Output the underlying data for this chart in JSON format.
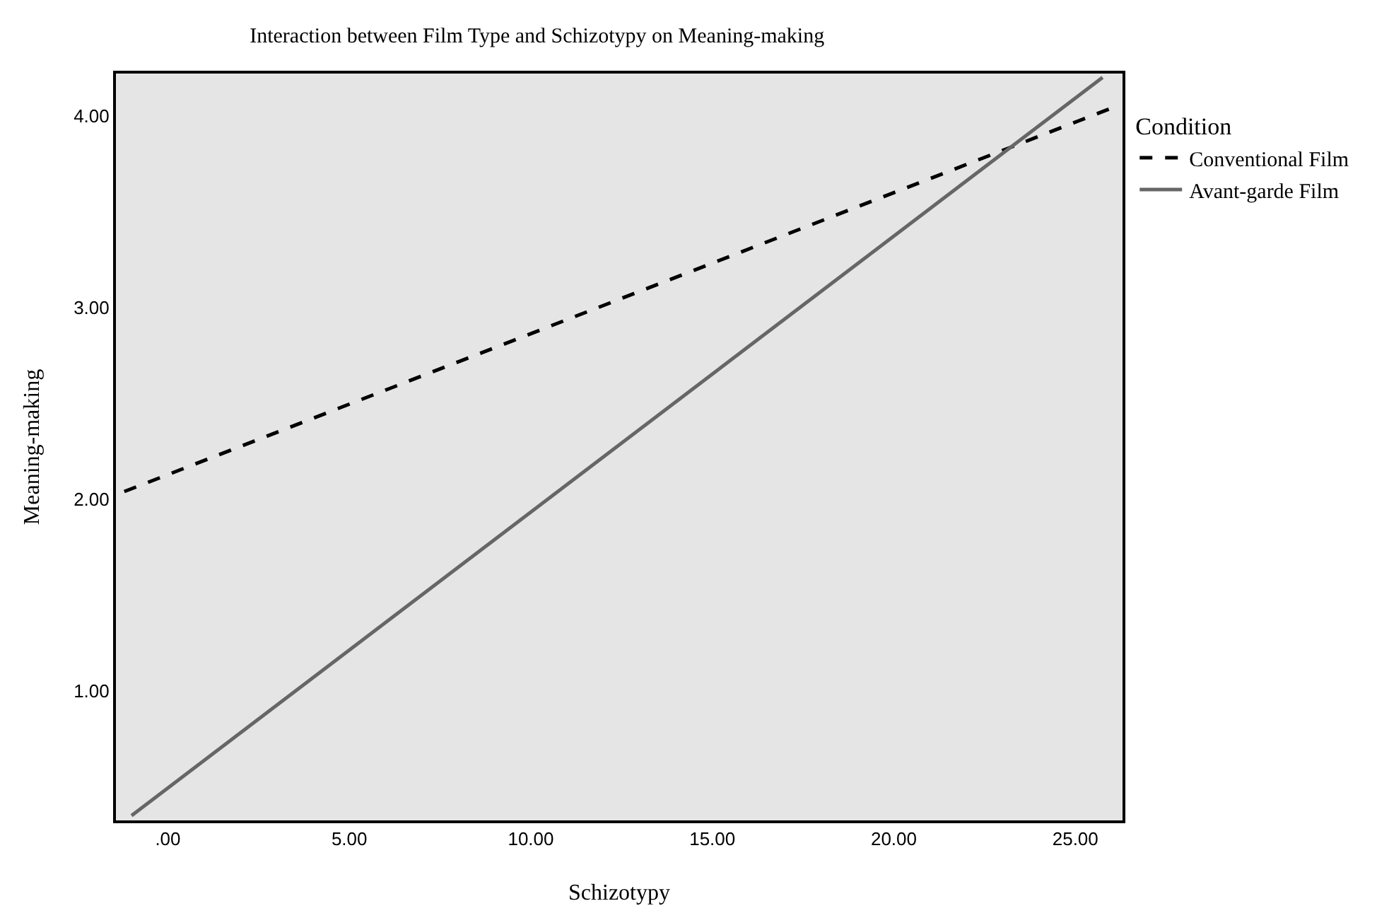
{
  "chart_data": {
    "type": "line",
    "title": "Interaction between Film Type and Schizotypy on Meaning-making",
    "xlabel": "Schizotypy",
    "ylabel": "Meaning-making",
    "legend_title": "Condition",
    "series": [
      {
        "name": "Conventional Film",
        "color": "#000000",
        "line_style": "dashed",
        "x": [
          -1.2,
          26.0
        ],
        "values": [
          2.04,
          4.04
        ]
      },
      {
        "name": "Avant-garde Film",
        "color": "#666666",
        "line_style": "solid",
        "x": [
          -1.0,
          25.75
        ],
        "values": [
          0.35,
          4.2
        ]
      }
    ],
    "xlim": [
      -1.43,
      26.3
    ],
    "ylim": [
      0.325,
      4.22
    ],
    "xticks": [
      {
        "value": 0,
        "label": ".00"
      },
      {
        "value": 5,
        "label": "5.00"
      },
      {
        "value": 10,
        "label": "10.00"
      },
      {
        "value": 15,
        "label": "15.00"
      },
      {
        "value": 20,
        "label": "20.00"
      },
      {
        "value": 25,
        "label": "25.00"
      }
    ],
    "yticks": [
      {
        "value": 1,
        "label": "1.00"
      },
      {
        "value": 2,
        "label": "2.00"
      },
      {
        "value": 3,
        "label": "3.00"
      },
      {
        "value": 4,
        "label": "4.00"
      }
    ],
    "grid": false,
    "legend": "top right",
    "marker": "none"
  }
}
